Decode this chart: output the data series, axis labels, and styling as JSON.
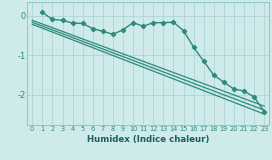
{
  "background_color": "#ceeaea",
  "grid_color": "#aacfcf",
  "line_color": "#2e8b7a",
  "xlabel": "Humidex (Indice chaleur)",
  "xlim": [
    -0.5,
    23.5
  ],
  "ylim": [
    -2.75,
    0.35
  ],
  "yticks": [
    0,
    -1,
    -2
  ],
  "xticks": [
    0,
    1,
    2,
    3,
    4,
    5,
    6,
    7,
    8,
    9,
    10,
    11,
    12,
    13,
    14,
    15,
    16,
    17,
    18,
    19,
    20,
    21,
    22,
    23
  ],
  "curve1_x": [
    1,
    2,
    3,
    4,
    5,
    6,
    7,
    8,
    9,
    10,
    11,
    12,
    13,
    14,
    15,
    16,
    17,
    18,
    19,
    20,
    21,
    22,
    23
  ],
  "curve1_y": [
    0.08,
    -0.1,
    -0.12,
    -0.19,
    -0.2,
    -0.33,
    -0.4,
    -0.47,
    -0.36,
    -0.18,
    -0.27,
    -0.18,
    -0.18,
    -0.17,
    -0.38,
    -0.8,
    -1.15,
    -1.5,
    -1.68,
    -1.85,
    -1.9,
    -2.05,
    -2.42
  ],
  "curve2_x": [
    0,
    23
  ],
  "curve2_y": [
    -0.12,
    -2.28
  ],
  "curve3_x": [
    0,
    23
  ],
  "curve3_y": [
    -0.17,
    -2.38
  ],
  "curve4_x": [
    0,
    23
  ],
  "curve4_y": [
    -0.22,
    -2.48
  ]
}
